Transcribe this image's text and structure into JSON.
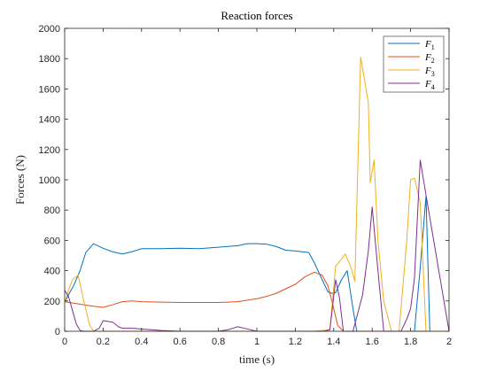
{
  "chart_data": {
    "type": "line",
    "title": "Reaction forces",
    "xlabel": "time (s)",
    "ylabel": "Forces (N)",
    "xlim": [
      0,
      2
    ],
    "ylim": [
      0,
      2000
    ],
    "xticks": [
      0,
      0.2,
      0.4,
      0.6,
      0.8,
      1,
      1.2,
      1.4,
      1.6,
      1.8,
      2
    ],
    "xtick_labels": [
      "0",
      "0.2",
      "0.4",
      "0.6",
      "0.8",
      "1",
      "1.2",
      "1.4",
      "1.6",
      "1.8",
      "2"
    ],
    "yticks": [
      0,
      200,
      400,
      600,
      800,
      1000,
      1200,
      1400,
      1600,
      1800,
      2000
    ],
    "ytick_labels": [
      "0",
      "200",
      "400",
      "600",
      "800",
      "1000",
      "1200",
      "1400",
      "1600",
      "1800",
      "2000"
    ],
    "grid": false,
    "legend_position": "top-right",
    "series": [
      {
        "name": "F1",
        "base": "F",
        "sub": "1",
        "color": "#0072BD",
        "x": [
          0,
          0.02,
          0.05,
          0.08,
          0.11,
          0.15,
          0.2,
          0.25,
          0.3,
          0.35,
          0.4,
          0.5,
          0.6,
          0.7,
          0.8,
          0.9,
          0.95,
          1.0,
          1.05,
          1.1,
          1.15,
          1.2,
          1.27,
          1.3,
          1.34,
          1.37,
          1.39,
          1.41,
          1.44,
          1.47,
          1.5,
          1.52,
          1.55,
          1.6,
          1.65,
          1.7,
          1.75,
          1.8,
          1.82,
          1.85,
          1.88,
          1.9,
          2.0
        ],
        "y": [
          190,
          240,
          310,
          400,
          520,
          578,
          548,
          525,
          510,
          525,
          545,
          545,
          548,
          545,
          555,
          565,
          578,
          578,
          575,
          560,
          535,
          530,
          520,
          450,
          340,
          260,
          250,
          255,
          340,
          400,
          150,
          0,
          0,
          0,
          0,
          0,
          0,
          0,
          0,
          420,
          890,
          0,
          0
        ]
      },
      {
        "name": "F2",
        "base": "F",
        "sub": "2",
        "color": "#D95319",
        "x": [
          0,
          0.05,
          0.1,
          0.15,
          0.2,
          0.25,
          0.3,
          0.35,
          0.4,
          0.5,
          0.6,
          0.7,
          0.8,
          0.9,
          1.0,
          1.05,
          1.1,
          1.15,
          1.2,
          1.25,
          1.3,
          1.34,
          1.37,
          1.4,
          1.42,
          1.45,
          1.5,
          1.6,
          1.7,
          1.8,
          1.85,
          1.9,
          2.0
        ],
        "y": [
          195,
          185,
          175,
          165,
          158,
          175,
          195,
          200,
          195,
          192,
          190,
          190,
          190,
          195,
          215,
          230,
          250,
          280,
          310,
          360,
          390,
          370,
          300,
          150,
          40,
          0,
          0,
          0,
          0,
          0,
          0,
          0,
          0
        ]
      },
      {
        "name": "F3",
        "base": "F",
        "sub": "3",
        "color": "#EDB120",
        "x": [
          0,
          0.02,
          0.04,
          0.07,
          0.1,
          0.13,
          0.15,
          0.2,
          0.3,
          0.4,
          0.6,
          0.8,
          1.0,
          1.2,
          1.3,
          1.38,
          1.41,
          1.43,
          1.46,
          1.49,
          1.51,
          1.54,
          1.58,
          1.59,
          1.61,
          1.63,
          1.66,
          1.7,
          1.74,
          1.78,
          1.8,
          1.82,
          1.85,
          1.88,
          1.9,
          2.0
        ],
        "y": [
          190,
          270,
          340,
          370,
          200,
          40,
          0,
          0,
          0,
          0,
          0,
          0,
          0,
          0,
          0,
          10,
          430,
          460,
          510,
          420,
          330,
          1810,
          1510,
          980,
          1130,
          600,
          200,
          0,
          0,
          600,
          1000,
          1010,
          850,
          0,
          0,
          0
        ]
      },
      {
        "name": "F4",
        "base": "F",
        "sub": "4",
        "color": "#7E2F8E",
        "x": [
          0,
          0.02,
          0.04,
          0.06,
          0.08,
          0.1,
          0.15,
          0.18,
          0.2,
          0.25,
          0.28,
          0.3,
          0.35,
          0.4,
          0.45,
          0.5,
          0.6,
          0.7,
          0.8,
          0.85,
          0.9,
          0.95,
          1.0,
          1.2,
          1.35,
          1.38,
          1.41,
          1.43,
          1.45,
          1.5,
          1.55,
          1.58,
          1.6,
          1.63,
          1.66,
          1.7,
          1.75,
          1.78,
          1.8,
          1.82,
          1.85,
          1.88,
          2.0
        ],
        "y": [
          270,
          230,
          140,
          50,
          5,
          0,
          0,
          20,
          70,
          60,
          30,
          20,
          20,
          15,
          10,
          5,
          0,
          0,
          0,
          10,
          30,
          15,
          0,
          0,
          0,
          10,
          340,
          220,
          0,
          0,
          240,
          530,
          820,
          400,
          0,
          0,
          0,
          80,
          150,
          350,
          1130,
          900,
          0
        ]
      }
    ]
  }
}
